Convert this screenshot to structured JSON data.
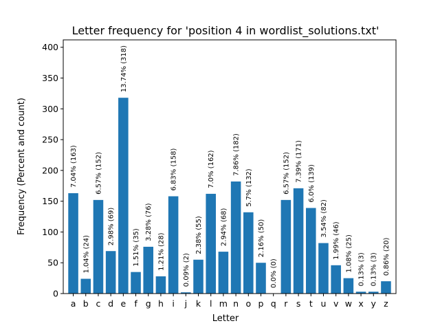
{
  "chart_data": {
    "type": "bar",
    "title": "Letter frequency for 'position 4 in wordlist_solutions.txt'",
    "xlabel": "Letter",
    "ylabel": "Frequency (Percent and count)",
    "ylim": [
      0,
      412
    ],
    "yticks": [
      0,
      50,
      100,
      150,
      200,
      250,
      300,
      350,
      400
    ],
    "grid": false,
    "bar_color": "#1f77b4",
    "categories": [
      "a",
      "b",
      "c",
      "d",
      "e",
      "f",
      "g",
      "h",
      "i",
      "j",
      "k",
      "l",
      "m",
      "n",
      "o",
      "p",
      "q",
      "r",
      "s",
      "t",
      "u",
      "v",
      "w",
      "x",
      "y",
      "z"
    ],
    "values": [
      163,
      24,
      152,
      69,
      318,
      35,
      76,
      28,
      158,
      2,
      55,
      162,
      68,
      182,
      132,
      50,
      0,
      152,
      171,
      139,
      82,
      46,
      25,
      3,
      3,
      20
    ],
    "labels": [
      "7.04% (163)",
      "1.04% (24)",
      "6.57% (152)",
      "2.98% (69)",
      "13.74% (318)",
      "1.51% (35)",
      "3.28% (76)",
      "1.21% (28)",
      "6.83% (158)",
      "0.09% (2)",
      "2.38% (55)",
      "7.0% (162)",
      "2.94% (68)",
      "7.86% (182)",
      "5.7% (132)",
      "2.16% (50)",
      "0.0% (0)",
      "6.57% (152)",
      "7.39% (171)",
      "6.0% (139)",
      "3.54% (82)",
      "1.99% (46)",
      "1.08% (25)",
      "0.13% (3)",
      "0.13% (3)",
      "0.86% (20)"
    ]
  }
}
